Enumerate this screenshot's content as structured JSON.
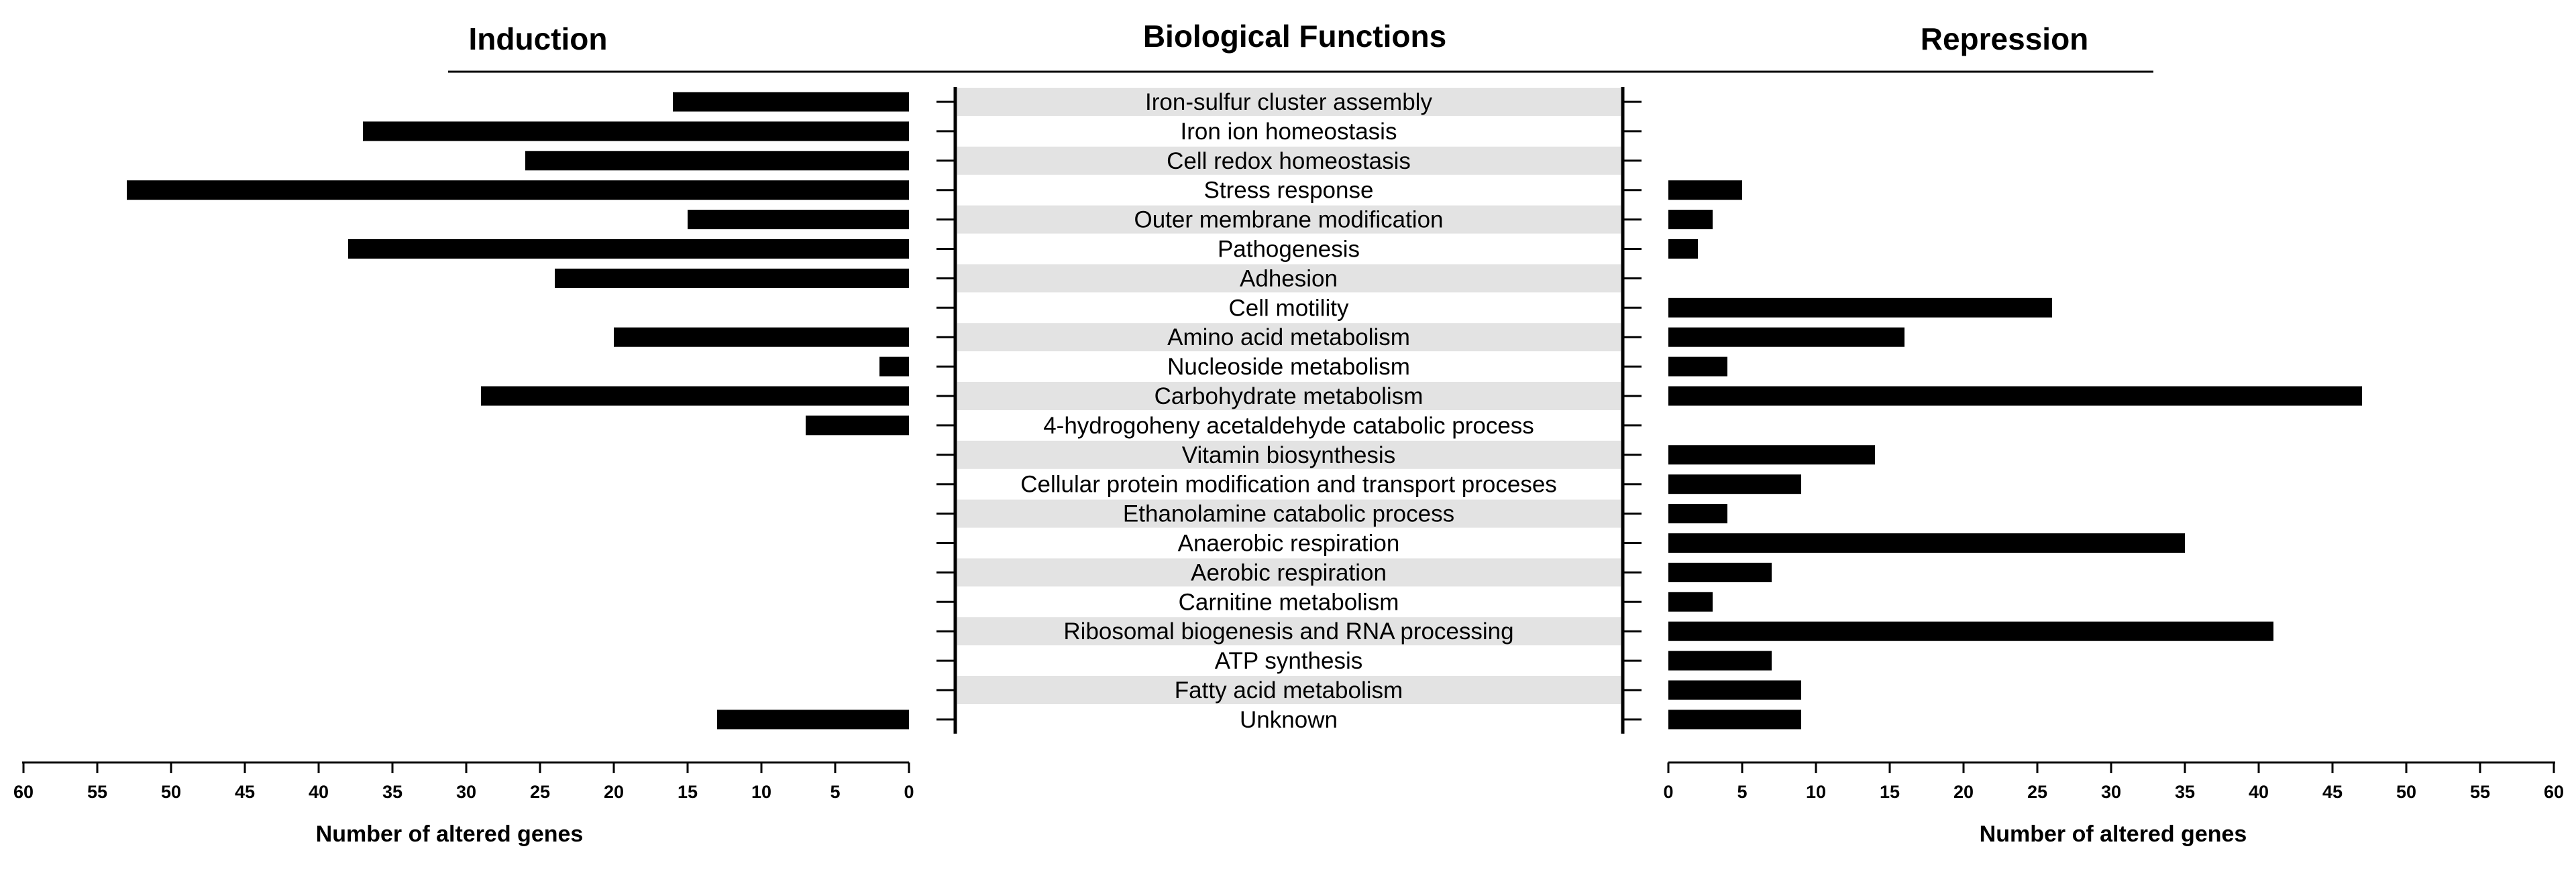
{
  "chart_data": {
    "type": "bar",
    "title": "Biological Functions",
    "categories": [
      "Iron-sulfur cluster assembly",
      "Iron ion homeostasis",
      "Cell redox homeostasis",
      "Stress response",
      "Outer membrane modification",
      "Pathogenesis",
      "Adhesion",
      "Cell motility",
      "Amino acid metabolism",
      "Nucleoside metabolism",
      "Carbohydrate metabolism",
      "4-hydrogoheny acetaldehyde catabolic process",
      "Vitamin biosynthesis",
      "Cellular protein modification and transport proceses",
      "Ethanolamine catabolic process",
      "Anaerobic respiration",
      "Aerobic respiration",
      "Carnitine metabolism",
      "Ribosomal biogenesis and RNA processing",
      "ATP synthesis",
      "Fatty acid metabolism",
      "Unknown"
    ],
    "series": [
      {
        "name": "Induction",
        "values": [
          16,
          37,
          26,
          53,
          15,
          38,
          24,
          0,
          20,
          2,
          29,
          7,
          0,
          0,
          0,
          0,
          0,
          0,
          0,
          0,
          0,
          13
        ]
      },
      {
        "name": "Repression",
        "values": [
          0,
          0,
          0,
          5,
          3,
          2,
          0,
          26,
          16,
          4,
          47,
          0,
          14,
          9,
          4,
          35,
          7,
          3,
          41,
          7,
          9,
          9
        ]
      }
    ],
    "xlabel_left": "Number of altered genes",
    "xlabel_right": "Number of altered genes",
    "xlim": [
      0,
      60
    ],
    "x_ticks": [
      0,
      5,
      10,
      15,
      20,
      25,
      30,
      35,
      40,
      45,
      50,
      55,
      60
    ],
    "bar_color": "#000000",
    "band_color": "#e3e3e3"
  }
}
